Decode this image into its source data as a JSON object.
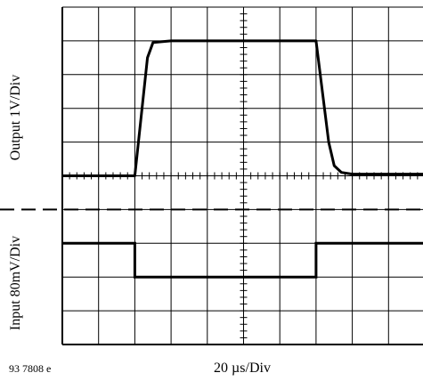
{
  "chart_data": {
    "type": "line",
    "title": "",
    "output_axis_label": "Output 1V/Div",
    "input_axis_label": "Input 80mV/Div",
    "time_axis_label": "20 µs/Div",
    "figure_id": "93 7808 e",
    "grid": true,
    "series": [
      {
        "name": "",
        "x": [
          0,
          2.0,
          2.35,
          2.5,
          3.0,
          7.0,
          7.35,
          7.5,
          7.7,
          8.0,
          10.0
        ],
        "y": [
          0,
          0,
          3.5,
          3.95,
          4.0,
          4.0,
          1.0,
          0.3,
          0.1,
          0.05,
          0.05
        ]
      },
      {
        "name": "",
        "x": [
          0,
          2.0,
          2.0,
          7.0,
          7.0,
          10.0
        ],
        "y": [
          0,
          0,
          -1,
          -1,
          0,
          0
        ]
      }
    ]
  }
}
